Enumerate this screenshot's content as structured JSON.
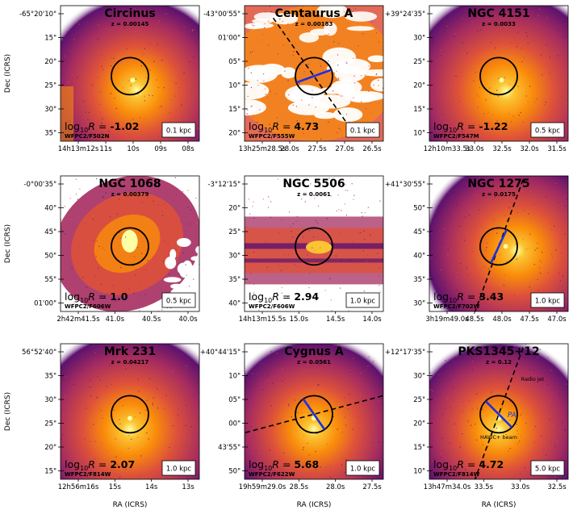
{
  "chart_data": {
    "type": "image-grid",
    "xlabel": "RA (ICRS)",
    "ylabel": "Dec (ICRS)",
    "colormap": [
      "#1b0c41",
      "#5c126e",
      "#a52c60",
      "#dd513a",
      "#f98c0a",
      "#fbc432",
      "#fcffa4"
    ],
    "colors": {
      "aperture": "#000000",
      "pa_line": "#1f2fe0",
      "jet_line": "#000000"
    },
    "panels": [
      {
        "name": "Circinus",
        "z": "z = 0.00145",
        "filter": "WFPC2/F502N",
        "logR": "-1.02",
        "scalebar": "0.1 kpc",
        "yticks": [
          "-65°20'10\"",
          "15\"",
          "20\"",
          "25\"",
          "30\"",
          "35\""
        ],
        "xticks": [
          "14h13m12s",
          "11s",
          "10s",
          "09s",
          "08s"
        ],
        "pa_line": false,
        "jet_line": false,
        "labels": []
      },
      {
        "name": "Centaurus A",
        "z": "z = 0.00183",
        "filter": "WFPC2/F555W",
        "logR": "4.73",
        "scalebar": "0.1 kpc",
        "yticks": [
          "-43°00'55\"",
          "01'00\"",
          "05\"",
          "10\"",
          "15\"",
          "20\""
        ],
        "xticks": [
          "13h25m28.5s",
          "28.0s",
          "27.5s",
          "27.0s",
          "26.5s"
        ],
        "pa_line": true,
        "jet_line": true,
        "labels": []
      },
      {
        "name": "NGC 4151",
        "z": "z = 0.0033",
        "filter": "WFPC2/F547M",
        "logR": "-1.22",
        "scalebar": "0.5 kpc",
        "yticks": [
          "+39°24'35\"",
          "30\"",
          "25\"",
          "20\"",
          "15\"",
          "10\""
        ],
        "xticks": [
          "12h10m33.5s",
          "33.0s",
          "32.5s",
          "32.0s",
          "31.5s"
        ],
        "pa_line": false,
        "jet_line": false,
        "labels": []
      },
      {
        "name": "NGC 1068",
        "z": "z = 0.00379",
        "filter": "WFPC2/F606W",
        "logR": "1.0",
        "scalebar": "0.5 kpc",
        "yticks": [
          "-0°00'35\"",
          "40\"",
          "45\"",
          "50\"",
          "55\"",
          "01'00\""
        ],
        "xticks": [
          "2h42m41.5s",
          "41.0s",
          "40.5s",
          "40.0s"
        ],
        "pa_line": false,
        "jet_line": false,
        "labels": []
      },
      {
        "name": "NGC 5506",
        "z": "z = 0.0061",
        "filter": "WFPC2/F606W",
        "logR": "2.94",
        "scalebar": "1.0 kpc",
        "yticks": [
          "-3°12'15\"",
          "20\"",
          "25\"",
          "30\"",
          "35\"",
          "40\""
        ],
        "xticks": [
          "14h13m15.5s",
          "15.0s",
          "14.5s",
          "14.0s"
        ],
        "pa_line": false,
        "jet_line": false,
        "labels": []
      },
      {
        "name": "NGC 1275",
        "z": "z = 0.0175",
        "filter": "WFPC2/F702W",
        "logR": "3.43",
        "scalebar": "1.0 kpc",
        "yticks": [
          "+41°30'55\"",
          "50\"",
          "45\"",
          "40\"",
          "35\"",
          "30\""
        ],
        "xticks": [
          "3h19m49.0s",
          "48.5s",
          "48.0s",
          "47.5s",
          "47.0s"
        ],
        "pa_line": true,
        "jet_line": true,
        "labels": []
      },
      {
        "name": "Mrk 231",
        "z": "z = 0.04217",
        "filter": "WFPC2/F814W",
        "logR": "2.07",
        "scalebar": "1.0 kpc",
        "yticks": [
          "56°52'40\"",
          "35\"",
          "30\"",
          "25\"",
          "20\"",
          "15\""
        ],
        "xticks": [
          "12h56m16s",
          "15s",
          "14s",
          "13s"
        ],
        "pa_line": false,
        "jet_line": false,
        "labels": []
      },
      {
        "name": "Cygnus A",
        "z": "z = 0.0561",
        "filter": "WFPC2/F622W",
        "logR": "5.68",
        "scalebar": "1.0 kpc",
        "yticks": [
          "+40°44'15\"",
          "10\"",
          "05\"",
          "00\"",
          "43'55\"",
          "50\""
        ],
        "xticks": [
          "19h59m29.0s",
          "28.5s",
          "28.0s",
          "27.5s"
        ],
        "pa_line": true,
        "jet_line": true,
        "labels": []
      },
      {
        "name": "PKS1345+12",
        "z": "z = 0.12",
        "filter": "WFPC2/F814W",
        "logR": "4.72",
        "scalebar": "5.0 kpc",
        "yticks": [
          "+12°17'35\"",
          "30\"",
          "25\"",
          "20\"",
          "15\"",
          "10\""
        ],
        "xticks": [
          "13h47m34.0s",
          "33.5s",
          "33.0s",
          "32.5s"
        ],
        "pa_line": true,
        "jet_line": true,
        "labels": [
          "Radio Jet",
          "PA",
          "HAWC+ beam"
        ]
      }
    ]
  }
}
